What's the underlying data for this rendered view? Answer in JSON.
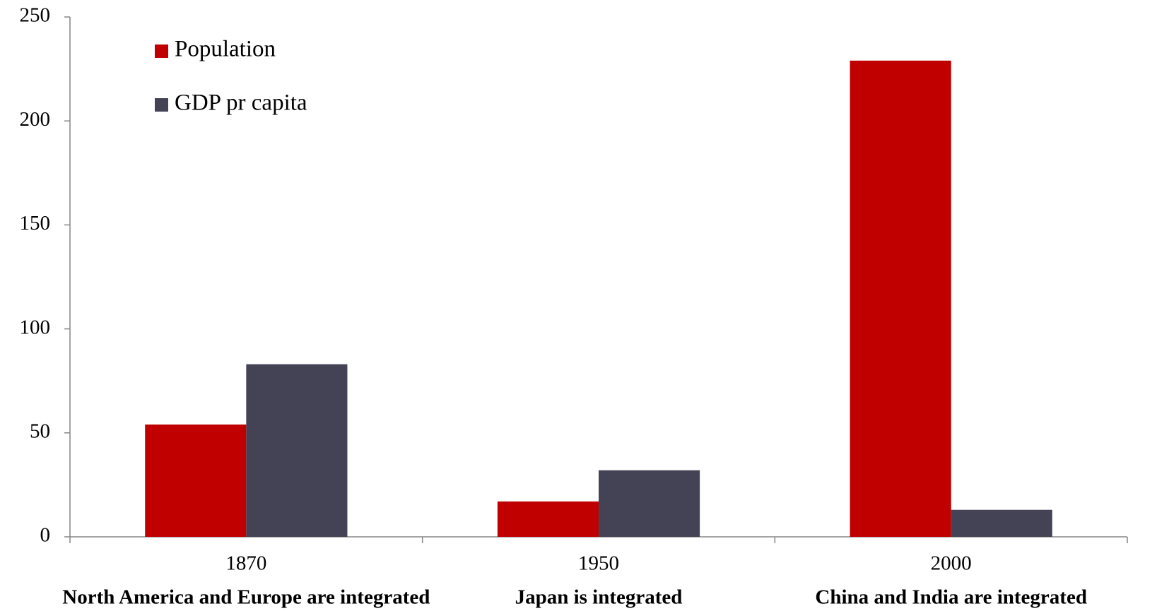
{
  "chart_data": {
    "type": "bar",
    "categories": [
      "1870",
      "1950",
      "2000"
    ],
    "annotations": [
      "North America and Europe are integrated",
      "Japan is integrated",
      "China and India are integrated"
    ],
    "series": [
      {
        "name": "Population",
        "color": "#c00000",
        "values": [
          54,
          17,
          229
        ]
      },
      {
        "name": "GDP pr capita",
        "color": "#434355",
        "values": [
          83,
          32,
          13
        ]
      }
    ],
    "ylim": [
      0,
      250
    ],
    "yticks": [
      0,
      50,
      100,
      150,
      200,
      250
    ],
    "grid": false,
    "legend": "top-left"
  }
}
